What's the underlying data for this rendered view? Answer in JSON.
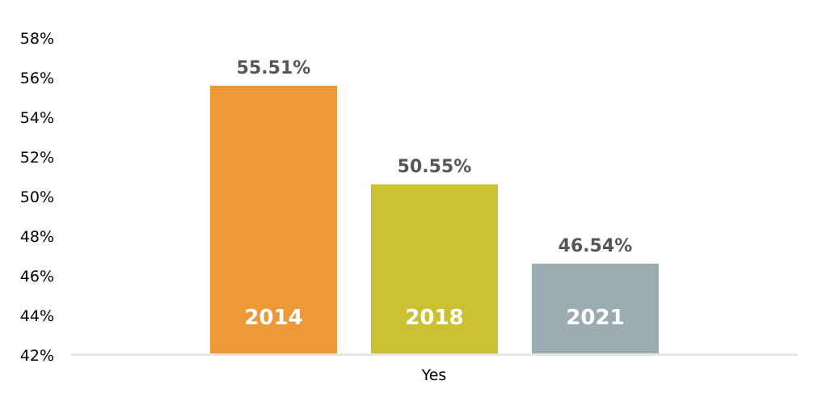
{
  "chart_data": {
    "type": "bar",
    "title": "",
    "categories": [
      "Yes"
    ],
    "xlabel": "Yes",
    "series": [
      {
        "name": "2014",
        "value": 55.51,
        "label": "55.51%",
        "color": "#EE9836"
      },
      {
        "name": "2018",
        "value": 50.55,
        "label": "50.55%",
        "color": "#CBC133"
      },
      {
        "name": "2021",
        "value": 46.54,
        "label": "46.54%",
        "color": "#9DACB2"
      }
    ],
    "y_axis": {
      "min": 42,
      "max": 58,
      "step": 2,
      "ticks": [
        "58%",
        "56%",
        "54%",
        "52%",
        "50%",
        "48%",
        "46%",
        "44%",
        "42%"
      ],
      "unit": "%"
    },
    "grid": false,
    "legend_position": "none"
  },
  "colors": {
    "background": "#FFFFFF",
    "axis_line": "#E6E6E6",
    "axis_text": "#000000",
    "value_label_text": "#53565A",
    "bar_inner_label_text": "#FFFFFF"
  }
}
